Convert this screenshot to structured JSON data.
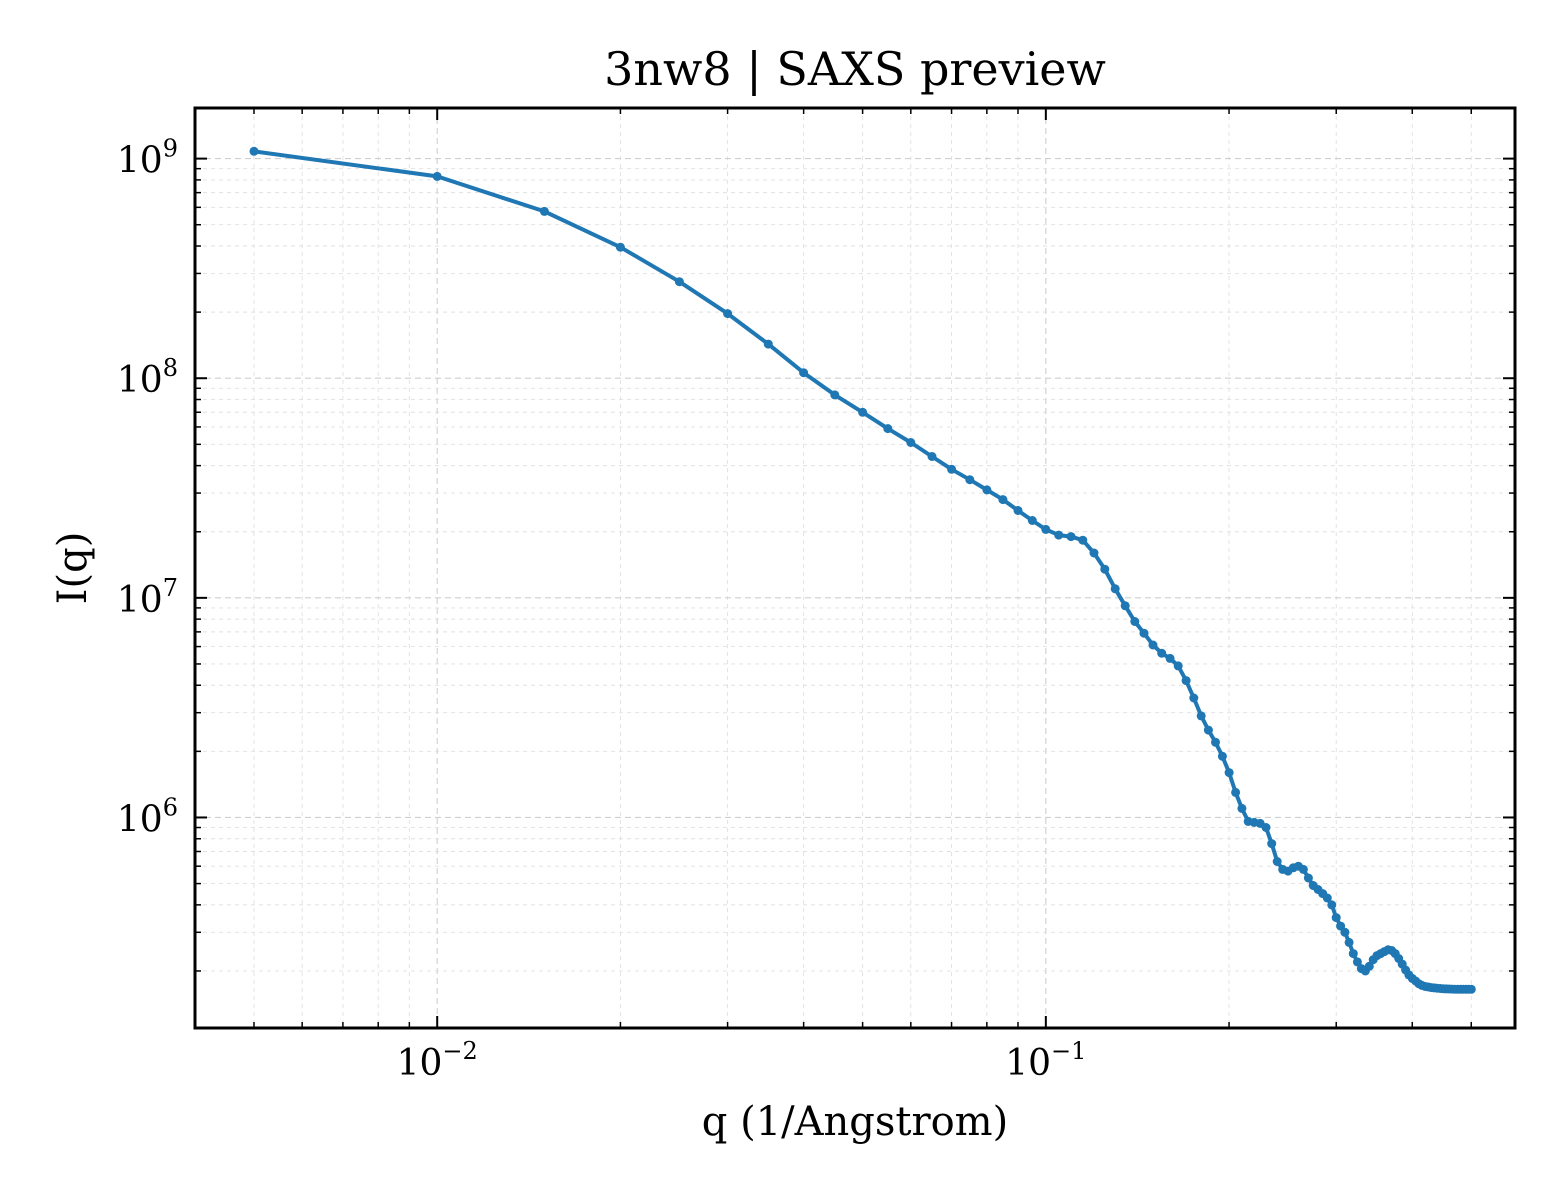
{
  "chart_data": {
    "type": "line",
    "title": "3nw8 | SAXS preview",
    "xlabel": "q (1/Angstrom)",
    "ylabel": "I(q)",
    "xscale": "log",
    "yscale": "log",
    "xlim": [
      0.004,
      0.59
    ],
    "ylim": [
      110000,
      1700000000
    ],
    "grid": true,
    "legend": "none",
    "color": "#1f77b4",
    "x_ticks": [
      {
        "value": 0.01,
        "base": "10",
        "exp": "−2"
      },
      {
        "value": 0.1,
        "base": "10",
        "exp": "−1"
      }
    ],
    "y_ticks": [
      {
        "value": 1000000,
        "base": "10",
        "exp": "6"
      },
      {
        "value": 10000000,
        "base": "10",
        "exp": "7"
      },
      {
        "value": 100000000,
        "base": "10",
        "exp": "8"
      },
      {
        "value": 1000000000,
        "base": "10",
        "exp": "9"
      }
    ],
    "series": [
      {
        "x": [
          0.005,
          0.01,
          0.015,
          0.02,
          0.025,
          0.03,
          0.035,
          0.04,
          0.045,
          0.05,
          0.055,
          0.06,
          0.065,
          0.07,
          0.075,
          0.08,
          0.085,
          0.09,
          0.095,
          0.1,
          0.105,
          0.11,
          0.115,
          0.12,
          0.125,
          0.13,
          0.135,
          0.14,
          0.145,
          0.15,
          0.155,
          0.16,
          0.165,
          0.17,
          0.175,
          0.18,
          0.185,
          0.19,
          0.195,
          0.2,
          0.205,
          0.21,
          0.215,
          0.22,
          0.225,
          0.23,
          0.235,
          0.24,
          0.245,
          0.25,
          0.255,
          0.26,
          0.265,
          0.27,
          0.275,
          0.28,
          0.285,
          0.29,
          0.295,
          0.3,
          0.305,
          0.31,
          0.315,
          0.32,
          0.325,
          0.33,
          0.335,
          0.34,
          0.345,
          0.35,
          0.355,
          0.36,
          0.365,
          0.37,
          0.375,
          0.38,
          0.385,
          0.39,
          0.395,
          0.4,
          0.405,
          0.41,
          0.415,
          0.42,
          0.425,
          0.43,
          0.435,
          0.44,
          0.445,
          0.45,
          0.455,
          0.46,
          0.465,
          0.47,
          0.475,
          0.48,
          0.485,
          0.49,
          0.495,
          0.5
        ],
        "y": [
          1080000000,
          830000000,
          575000000,
          395000000,
          275000000,
          197000000,
          143000000,
          106000000,
          84000000,
          70000000,
          59000000,
          51000000,
          44000000,
          38500000,
          34500000,
          31000000,
          28000000,
          25000000,
          22500000,
          20500000,
          19300000,
          19000000,
          18300000,
          16000000,
          13500000,
          11000000,
          9200000,
          7800000,
          6900000,
          6100000,
          5600000,
          5300000,
          4900000,
          4200000,
          3500000,
          2900000,
          2500000,
          2200000,
          1900000,
          1600000,
          1300000,
          1100000,
          960000,
          950000,
          940000,
          900000,
          760000,
          630000,
          580000,
          570000,
          590000,
          600000,
          580000,
          530000,
          490000,
          470000,
          450000,
          430000,
          400000,
          350000,
          320000,
          300000,
          270000,
          240000,
          220000,
          205000,
          200000,
          210000,
          225000,
          235000,
          240000,
          245000,
          250000,
          248000,
          240000,
          228000,
          215000,
          202000,
          192000,
          185000,
          180000,
          175000,
          172000,
          170000,
          169000,
          168000,
          167500,
          167000,
          166500,
          166000,
          165800,
          165600,
          165400,
          165200,
          165000,
          165000,
          165000,
          165000,
          165000,
          165000
        ]
      }
    ]
  }
}
